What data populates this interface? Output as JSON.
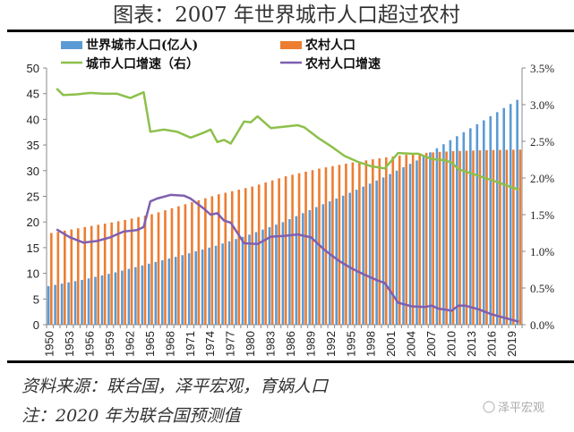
{
  "title": "图表：2007 年世界城市人口超过农村",
  "source": "资料来源：联合国，泽平宏观，育娲人口",
  "note": "注：2020 年为联合国预测值",
  "watermark": "泽平宏观",
  "chart_data": {
    "type": "bar+line",
    "title": "图表：2007 年世界城市人口超过农村",
    "legend_position": "top",
    "grid": false,
    "categories_start": 1950,
    "categories_end": 2020,
    "x_tick_labels": [
      "1950",
      "1953",
      "1956",
      "1959",
      "1962",
      "1965",
      "1968",
      "1971",
      "1974",
      "1977",
      "1980",
      "1983",
      "1986",
      "1989",
      "1992",
      "1995",
      "1998",
      "2001",
      "2004",
      "2007",
      "2010",
      "2013",
      "2016",
      "2019"
    ],
    "left_axis": {
      "range": [
        0,
        50
      ],
      "ticks": [
        "0",
        "5",
        "10",
        "15",
        "20",
        "25",
        "30",
        "35",
        "40",
        "45",
        "50"
      ]
    },
    "right_axis": {
      "range": [
        0,
        3.5
      ],
      "ticks": [
        "0.0%",
        "0.5%",
        "1.0%",
        "1.5%",
        "2.0%",
        "2.5%",
        "3.0%",
        "3.5%"
      ]
    },
    "bar_series": [
      {
        "name": "世界城市人口(亿人)",
        "color": "#5b9bd5",
        "values": [
          7.51,
          7.75,
          8.0,
          8.24,
          8.48,
          8.72,
          9.01,
          9.31,
          9.6,
          9.9,
          10.19,
          10.53,
          10.87,
          11.2,
          11.54,
          11.88,
          12.21,
          12.54,
          12.88,
          13.21,
          13.54,
          13.91,
          14.28,
          14.64,
          15.01,
          15.38,
          15.81,
          16.24,
          16.68,
          17.11,
          17.54,
          18.03,
          18.52,
          19.0,
          19.49,
          19.97,
          20.56,
          21.14,
          21.73,
          22.31,
          22.9,
          23.46,
          24.02,
          24.57,
          25.13,
          25.69,
          26.29,
          26.89,
          27.48,
          28.08,
          28.68,
          29.34,
          30.0,
          30.67,
          31.33,
          31.99,
          32.78,
          33.57,
          34.36,
          35.15,
          35.94,
          36.71,
          37.49,
          38.26,
          39.04,
          39.81,
          40.61,
          41.4,
          42.2,
          42.99,
          43.79
        ]
      },
      {
        "name": "农村人口",
        "color": "#ed7d31",
        "values": [
          17.85,
          18.08,
          18.31,
          18.55,
          18.78,
          19.01,
          19.24,
          19.46,
          19.69,
          19.91,
          20.14,
          20.41,
          20.68,
          20.96,
          21.23,
          21.5,
          21.89,
          22.28,
          22.68,
          23.07,
          23.46,
          23.85,
          24.24,
          24.62,
          25.01,
          25.4,
          25.7,
          26.0,
          26.3,
          26.6,
          26.9,
          27.3,
          27.7,
          28.1,
          28.5,
          28.9,
          29.2,
          29.5,
          29.8,
          30.1,
          30.4,
          30.64,
          30.88,
          31.12,
          31.36,
          31.6,
          31.8,
          32.0,
          32.2,
          32.4,
          32.6,
          32.76,
          32.92,
          33.08,
          33.24,
          33.4,
          33.48,
          33.56,
          33.64,
          33.72,
          33.8,
          33.84,
          33.88,
          33.92,
          33.96,
          34.0,
          34.02,
          34.04,
          34.06,
          34.08,
          34.1
        ]
      }
    ],
    "line_series": [
      {
        "name": "城市人口增速（右）",
        "color": "#8dc04b",
        "unit": "%",
        "points": [
          [
            1951,
            3.22
          ],
          [
            1952,
            3.13
          ],
          [
            1954,
            3.14
          ],
          [
            1956,
            3.16
          ],
          [
            1958,
            3.15
          ],
          [
            1960,
            3.15
          ],
          [
            1961,
            3.12
          ],
          [
            1962,
            3.09
          ],
          [
            1963,
            3.13
          ],
          [
            1964,
            3.17
          ],
          [
            1965,
            2.63
          ],
          [
            1967,
            2.66
          ],
          [
            1969,
            2.63
          ],
          [
            1971,
            2.55
          ],
          [
            1973,
            2.62
          ],
          [
            1974,
            2.66
          ],
          [
            1975,
            2.49
          ],
          [
            1976,
            2.52
          ],
          [
            1977,
            2.47
          ],
          [
            1979,
            2.77
          ],
          [
            1980,
            2.76
          ],
          [
            1981,
            2.84
          ],
          [
            1983,
            2.68
          ],
          [
            1985,
            2.7
          ],
          [
            1987,
            2.72
          ],
          [
            1988,
            2.69
          ],
          [
            1990,
            2.55
          ],
          [
            1992,
            2.43
          ],
          [
            1994,
            2.3
          ],
          [
            1996,
            2.22
          ],
          [
            1998,
            2.16
          ],
          [
            2000,
            2.13
          ],
          [
            2002,
            2.34
          ],
          [
            2004,
            2.33
          ],
          [
            2005,
            2.33
          ],
          [
            2007,
            2.26
          ],
          [
            2009,
            2.24
          ],
          [
            2010,
            2.21
          ],
          [
            2011,
            2.12
          ],
          [
            2013,
            2.06
          ],
          [
            2016,
            1.97
          ],
          [
            2020,
            1.84
          ]
        ]
      },
      {
        "name": "农村人口增速",
        "color": "#7f5fb0",
        "unit": "%",
        "points": [
          [
            1951,
            1.3
          ],
          [
            1953,
            1.19
          ],
          [
            1955,
            1.12
          ],
          [
            1957,
            1.14
          ],
          [
            1959,
            1.19
          ],
          [
            1961,
            1.27
          ],
          [
            1963,
            1.29
          ],
          [
            1964,
            1.33
          ],
          [
            1965,
            1.68
          ],
          [
            1966,
            1.72
          ],
          [
            1968,
            1.77
          ],
          [
            1970,
            1.76
          ],
          [
            1971,
            1.72
          ],
          [
            1973,
            1.58
          ],
          [
            1974,
            1.5
          ],
          [
            1975,
            1.52
          ],
          [
            1976,
            1.42
          ],
          [
            1977,
            1.39
          ],
          [
            1979,
            1.11
          ],
          [
            1981,
            1.1
          ],
          [
            1982,
            1.15
          ],
          [
            1983,
            1.2
          ],
          [
            1985,
            1.21
          ],
          [
            1987,
            1.23
          ],
          [
            1989,
            1.19
          ],
          [
            1991,
            1.02
          ],
          [
            1993,
            0.88
          ],
          [
            1995,
            0.77
          ],
          [
            1997,
            0.68
          ],
          [
            1999,
            0.6
          ],
          [
            2000,
            0.57
          ],
          [
            2002,
            0.3
          ],
          [
            2004,
            0.25
          ],
          [
            2006,
            0.24
          ],
          [
            2007,
            0.26
          ],
          [
            2008,
            0.22
          ],
          [
            2010,
            0.19
          ],
          [
            2011,
            0.26
          ],
          [
            2012,
            0.26
          ],
          [
            2014,
            0.21
          ],
          [
            2016,
            0.14
          ],
          [
            2018,
            0.09
          ],
          [
            2020,
            0.04
          ]
        ]
      }
    ]
  }
}
